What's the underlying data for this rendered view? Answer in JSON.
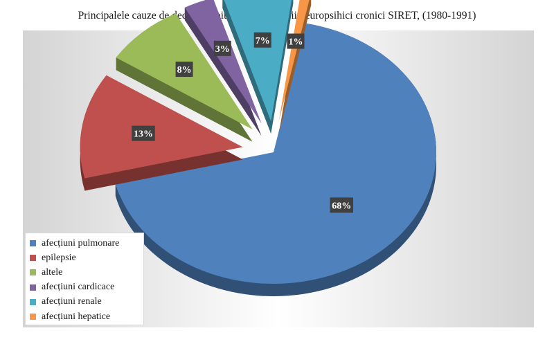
{
  "chart_data": {
    "type": "pie",
    "title": "Principalele cauze de deces în Spitalul pentru copii neuropsihici cronici SIRET, (1980-1991)",
    "categories": [
      "afecțiuni pulmonare",
      "epilepsie",
      "altele",
      "afecțiuni cardicace",
      "afecțiuni renale",
      "afecțiuni hepatice"
    ],
    "values": [
      68,
      13,
      8,
      3,
      7,
      1
    ],
    "value_labels": [
      "68%",
      "13%",
      "8%",
      "3%",
      "7%",
      "1%"
    ],
    "colors": [
      "#4f81bd",
      "#c0504d",
      "#9bbb59",
      "#8064a2",
      "#4bacc6",
      "#f79646"
    ],
    "style": "3d-exploded",
    "legend_position": "bottom-left"
  }
}
